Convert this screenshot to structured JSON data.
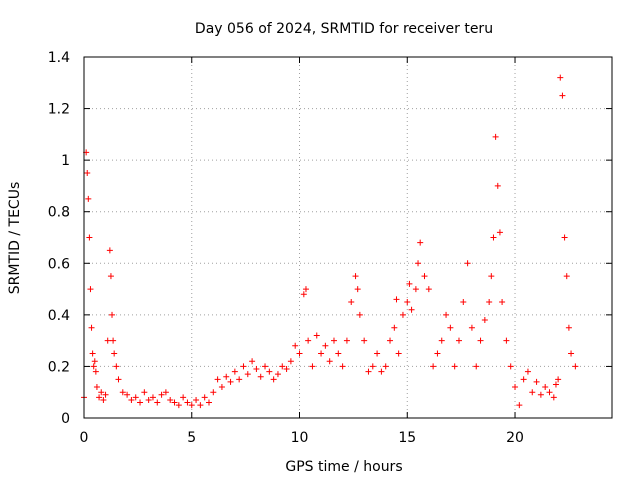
{
  "chart_data": {
    "type": "scatter",
    "title": "Day 056 of 2024, SRMTID for receiver teru",
    "xlabel": "GPS time / hours",
    "ylabel": "SRMTID / TECUs",
    "xlim": [
      0,
      24.5
    ],
    "ylim": [
      0,
      1.4
    ],
    "xticks": [
      0,
      5,
      10,
      15,
      20
    ],
    "xtick_labels": [
      "0",
      "5",
      "10",
      "15",
      "20"
    ],
    "yticks": [
      0,
      0.2,
      0.4,
      0.6,
      0.8,
      1.0,
      1.2,
      1.4
    ],
    "ytick_labels": [
      "0",
      "0.2",
      "0.4",
      "0.6",
      "0.8",
      "1",
      "1.2",
      "1.4"
    ],
    "grid": true,
    "marker": "+",
    "color": "#ff0000",
    "series": [
      {
        "name": "SRMTID",
        "x": [
          0.0,
          0.1,
          0.15,
          0.2,
          0.25,
          0.3,
          0.35,
          0.4,
          0.45,
          0.5,
          0.55,
          0.6,
          0.7,
          0.8,
          0.9,
          1.0,
          1.1,
          1.2,
          1.25,
          1.3,
          1.35,
          1.4,
          1.5,
          1.6,
          1.8,
          2.0,
          2.2,
          2.4,
          2.6,
          2.8,
          3.0,
          3.2,
          3.4,
          3.6,
          3.8,
          4.0,
          4.2,
          4.4,
          4.6,
          4.8,
          5.0,
          5.2,
          5.4,
          5.6,
          5.8,
          6.0,
          6.2,
          6.4,
          6.6,
          6.8,
          7.0,
          7.2,
          7.4,
          7.6,
          7.8,
          8.0,
          8.2,
          8.4,
          8.6,
          8.8,
          9.0,
          9.2,
          9.4,
          9.6,
          9.8,
          10.0,
          10.2,
          10.3,
          10.4,
          10.6,
          10.8,
          11.0,
          11.2,
          11.4,
          11.6,
          11.8,
          12.0,
          12.2,
          12.4,
          12.6,
          12.7,
          12.8,
          13.0,
          13.2,
          13.4,
          13.6,
          13.8,
          14.0,
          14.2,
          14.4,
          14.5,
          14.6,
          14.8,
          15.0,
          15.1,
          15.2,
          15.4,
          15.5,
          15.6,
          15.8,
          16.0,
          16.2,
          16.4,
          16.6,
          16.8,
          17.0,
          17.2,
          17.4,
          17.6,
          17.8,
          18.0,
          18.2,
          18.4,
          18.6,
          18.8,
          18.9,
          19.0,
          19.1,
          19.2,
          19.3,
          19.4,
          19.6,
          19.8,
          20.0,
          20.2,
          20.4,
          20.6,
          20.8,
          21.0,
          21.2,
          21.4,
          21.6,
          21.8,
          21.9,
          22.0,
          22.1,
          22.2,
          22.3,
          22.4,
          22.5,
          22.6,
          22.8
        ],
        "y": [
          0.08,
          1.03,
          0.95,
          0.85,
          0.7,
          0.5,
          0.35,
          0.25,
          0.2,
          0.22,
          0.18,
          0.12,
          0.08,
          0.1,
          0.07,
          0.09,
          0.3,
          0.65,
          0.55,
          0.4,
          0.3,
          0.25,
          0.2,
          0.15,
          0.1,
          0.09,
          0.07,
          0.08,
          0.06,
          0.1,
          0.07,
          0.08,
          0.06,
          0.09,
          0.1,
          0.07,
          0.06,
          0.05,
          0.08,
          0.06,
          0.05,
          0.07,
          0.05,
          0.08,
          0.06,
          0.1,
          0.15,
          0.12,
          0.16,
          0.14,
          0.18,
          0.15,
          0.2,
          0.17,
          0.22,
          0.19,
          0.16,
          0.2,
          0.18,
          0.15,
          0.17,
          0.2,
          0.19,
          0.22,
          0.28,
          0.25,
          0.48,
          0.5,
          0.3,
          0.2,
          0.32,
          0.25,
          0.28,
          0.22,
          0.3,
          0.25,
          0.2,
          0.3,
          0.45,
          0.55,
          0.5,
          0.4,
          0.3,
          0.18,
          0.2,
          0.25,
          0.18,
          0.2,
          0.3,
          0.35,
          0.46,
          0.25,
          0.4,
          0.45,
          0.52,
          0.42,
          0.5,
          0.6,
          0.68,
          0.55,
          0.5,
          0.2,
          0.25,
          0.3,
          0.4,
          0.35,
          0.2,
          0.3,
          0.45,
          0.6,
          0.35,
          0.2,
          0.3,
          0.38,
          0.45,
          0.55,
          0.7,
          1.09,
          0.9,
          0.72,
          0.45,
          0.3,
          0.2,
          0.12,
          0.05,
          0.15,
          0.18,
          0.1,
          0.14,
          0.09,
          0.12,
          0.1,
          0.08,
          0.13,
          0.15,
          1.32,
          1.25,
          0.7,
          0.55,
          0.35,
          0.25,
          0.2
        ]
      }
    ]
  }
}
